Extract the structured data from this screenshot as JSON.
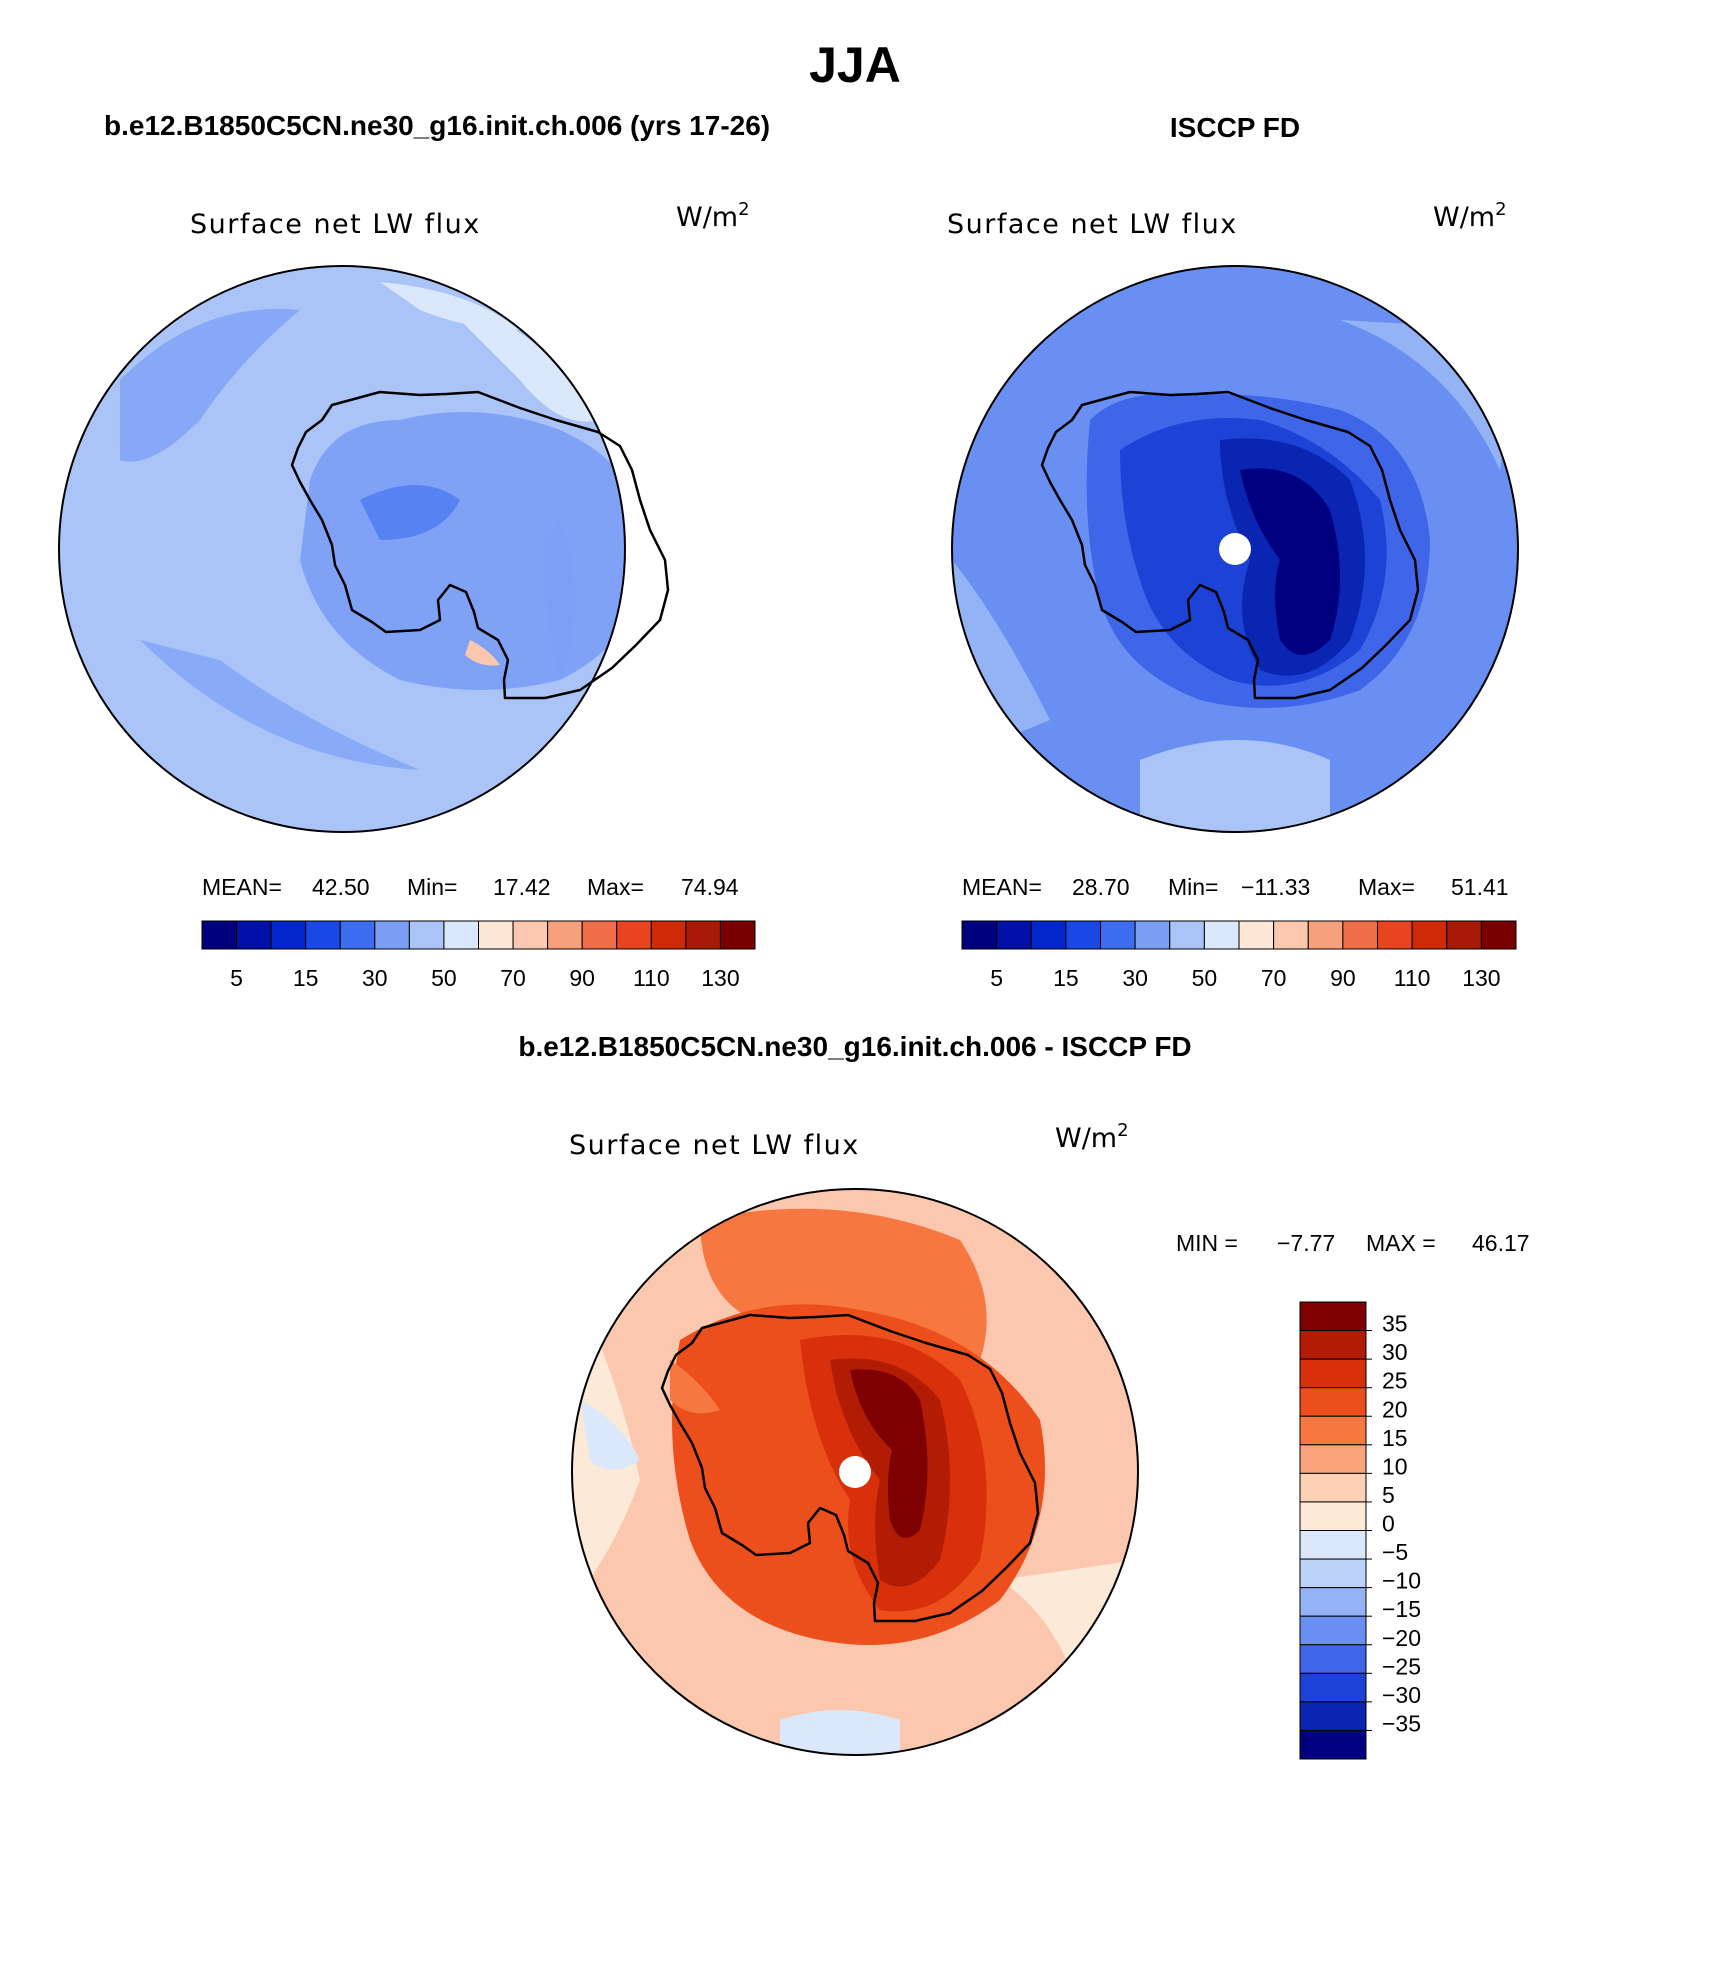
{
  "page": {
    "title": "JJA"
  },
  "panels": [
    {
      "heading": "b.e12.B1850C5CN.ne30_g16.init.ch.006 (yrs 17-26)",
      "field_label": "Surface net LW flux",
      "units": "W/m",
      "units_exp": "2",
      "stats": {
        "mean_label": "MEAN=",
        "mean": "42.50",
        "min_label": "Min=",
        "min": "17.42",
        "max_label": "Max=",
        "max": "74.94"
      }
    },
    {
      "heading": "ISCCP FD",
      "field_label": "Surface net LW flux",
      "units": "W/m",
      "units_exp": "2",
      "stats": {
        "mean_label": "MEAN=",
        "mean": "28.70",
        "min_label": "Min=",
        "min": "−11.33",
        "max_label": "Max=",
        "max": "51.41"
      }
    },
    {
      "heading": "b.e12.B1850C5CN.ne30_g16.init.ch.006 - ISCCP FD",
      "field_label": "Surface net LW flux",
      "units": "W/m",
      "units_exp": "2",
      "stats": {
        "min_label": "MIN =",
        "min": "−7.77",
        "max_label": "MAX =",
        "max": "46.17"
      }
    }
  ],
  "colorbars": {
    "absolute": {
      "colors": [
        "#00007f",
        "#0010a8",
        "#0026cc",
        "#1a48e6",
        "#3c6cf0",
        "#7a9ff5",
        "#abc4f7",
        "#dbe8fb",
        "#fde6d6",
        "#fbc7ae",
        "#f7a17c",
        "#f06d48",
        "#e8441f",
        "#cf2a08",
        "#a81a05",
        "#7a0000"
      ],
      "tick_labels": [
        "5",
        "15",
        "30",
        "50",
        "70",
        "90",
        "110",
        "130"
      ]
    },
    "difference": {
      "colors": [
        "#7f0000",
        "#b21c05",
        "#d8300a",
        "#ec4e1c",
        "#f6773f",
        "#fba37b",
        "#fdd1b5",
        "#fde9d8",
        "#dbe8fb",
        "#bdd2f8",
        "#94b3f5",
        "#6a8ff2",
        "#3f66e8",
        "#1c43d6",
        "#0a25b2",
        "#000080"
      ],
      "tick_labels": [
        "35",
        "30",
        "25",
        "20",
        "15",
        "10",
        "5",
        "0",
        "−5",
        "−10",
        "−15",
        "−20",
        "−25",
        "−30",
        "−35"
      ]
    }
  },
  "chart_data": [
    {
      "type": "heatmap",
      "title": "b.e12.B1850C5CN.ne30_g16.init.ch.006 (yrs 17-26)",
      "variable": "Surface net LW flux",
      "units": "W/m2",
      "projection": "south polar stereographic",
      "mean": 42.5,
      "min": 17.42,
      "max": 74.94,
      "color_levels": [
        5,
        10,
        15,
        20,
        30,
        40,
        50,
        60,
        70,
        80,
        90,
        100,
        110,
        120,
        130
      ]
    },
    {
      "type": "heatmap",
      "title": "ISCCP FD",
      "variable": "Surface net LW flux",
      "units": "W/m2",
      "projection": "south polar stereographic",
      "mean": 28.7,
      "min": -11.33,
      "max": 51.41,
      "color_levels": [
        5,
        10,
        15,
        20,
        30,
        40,
        50,
        60,
        70,
        80,
        90,
        100,
        110,
        120,
        130
      ]
    },
    {
      "type": "heatmap",
      "title": "b.e12.B1850C5CN.ne30_g16.init.ch.006 - ISCCP FD",
      "variable": "Surface net LW flux",
      "units": "W/m2",
      "projection": "south polar stereographic",
      "min": -7.77,
      "max": 46.17,
      "color_levels": [
        -35,
        -30,
        -25,
        -20,
        -15,
        -10,
        -5,
        0,
        5,
        10,
        15,
        20,
        25,
        30,
        35
      ]
    }
  ]
}
